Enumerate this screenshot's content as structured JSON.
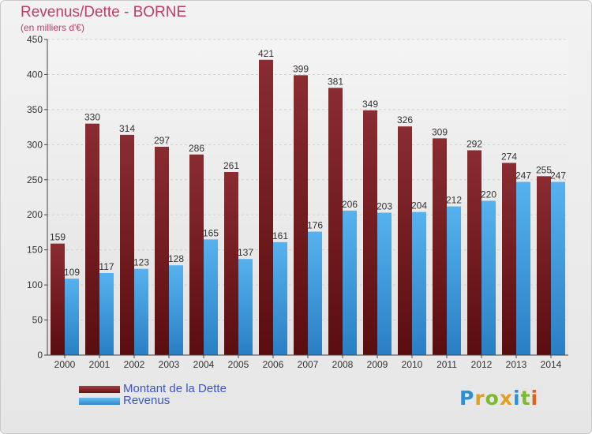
{
  "header": {
    "title": "Revenus/Dette - BORNE",
    "subtitle": "(en milliers d'€)"
  },
  "chart_data": {
    "type": "bar",
    "title": "Revenus/Dette - BORNE",
    "ylabel": "(en milliers d'€)",
    "xlabel": "",
    "ylim": [
      0,
      450
    ],
    "yticks": [
      0,
      50,
      100,
      150,
      200,
      250,
      300,
      350,
      400,
      450
    ],
    "grid": true,
    "legend_position": "bottom-left",
    "categories": [
      "2000",
      "2001",
      "2002",
      "2003",
      "2004",
      "2005",
      "2006",
      "2007",
      "2008",
      "2009",
      "2010",
      "2011",
      "2012",
      "2013",
      "2014"
    ],
    "series": [
      {
        "name": "Montant de la Dette",
        "color": "#7a2226",
        "values": [
          159,
          330,
          314,
          297,
          286,
          261,
          421,
          399,
          381,
          349,
          326,
          309,
          292,
          274,
          255
        ]
      },
      {
        "name": "Revenus",
        "color": "#3e9ee0",
        "values": [
          109,
          117,
          123,
          128,
          165,
          137,
          161,
          176,
          206,
          203,
          204,
          212,
          220,
          247,
          247
        ]
      }
    ]
  },
  "legend": {
    "items": [
      {
        "label": "Montant de la Dette",
        "color": "#6b1d20"
      },
      {
        "label": "Revenus",
        "color": "#3e9ee0"
      }
    ]
  },
  "logo": {
    "letters": [
      "P",
      "r",
      "o",
      "x",
      "i",
      "t",
      "i"
    ],
    "colors": [
      "#2f8fd0",
      "#e0a020",
      "#7cb830",
      "#e0a020",
      "#2f8fd0",
      "#7cb830",
      "#e06020"
    ]
  }
}
